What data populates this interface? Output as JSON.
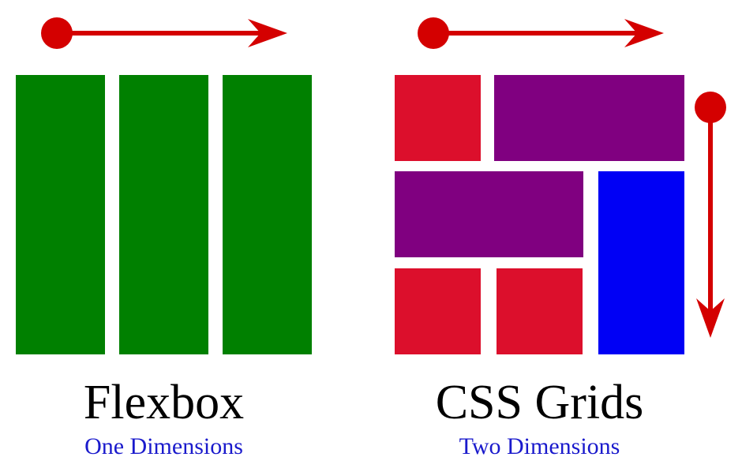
{
  "colors": {
    "arrow": "#d40000",
    "flex_item": "#008000",
    "grid_red": "#dc0f2c",
    "grid_purple": "#800080",
    "grid_blue": "#0000f5",
    "subtitle": "#1a1acc"
  },
  "flexbox": {
    "title": "Flexbox",
    "subtitle": "One Dimensions",
    "arrow_direction": "horizontal"
  },
  "grid": {
    "title": "CSS Grids",
    "subtitle": "Two Dimensions",
    "arrow_directions": [
      "horizontal",
      "vertical"
    ]
  }
}
